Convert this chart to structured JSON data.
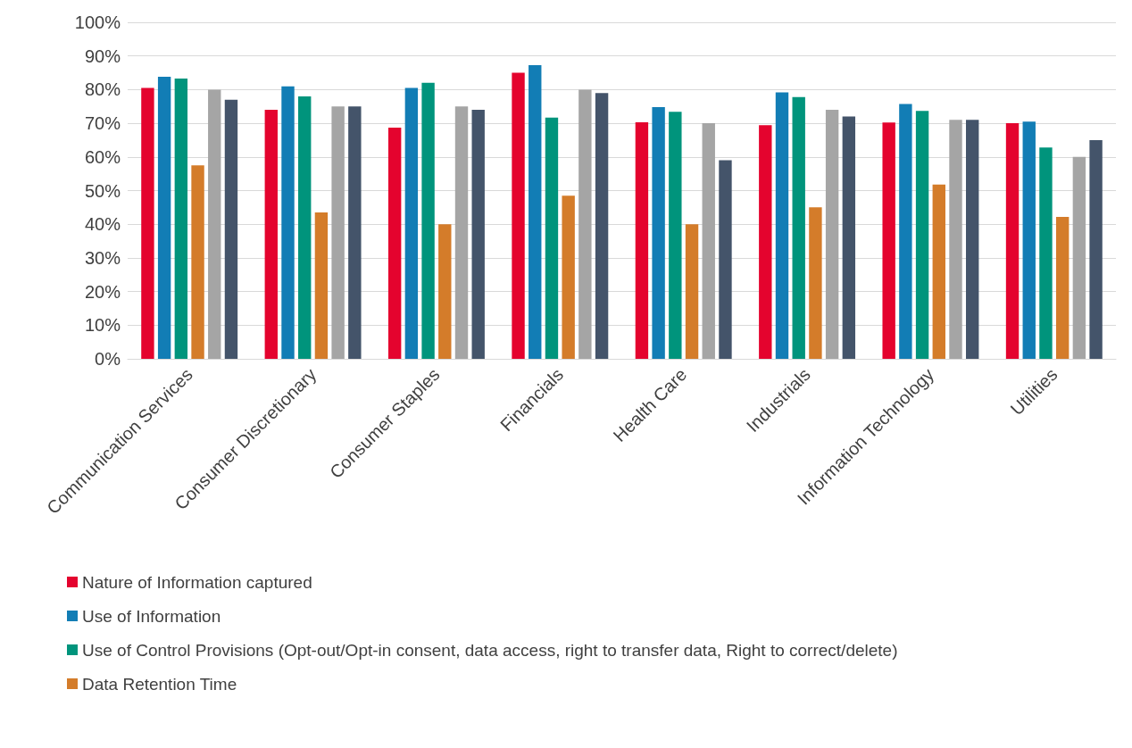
{
  "chart_data": {
    "type": "bar",
    "categories": [
      "Communication Services",
      "Consumer Discretionary",
      "Consumer Staples",
      "Financials",
      "Health Care",
      "Industrials",
      "Information Technology",
      "Utilities"
    ],
    "series": [
      {
        "name": "Nature of Information captured",
        "color": "#e4032e",
        "values": [
          80.5,
          74,
          68.7,
          85,
          70.3,
          69.4,
          70.2,
          70
        ]
      },
      {
        "name": "Use of Information",
        "color": "#127db5",
        "values": [
          83.8,
          81,
          80.5,
          87.3,
          74.8,
          79.2,
          75.7,
          70.5
        ]
      },
      {
        "name": "Use of Control Provisions (Opt-out/Opt-in consent, data access, right to transfer data, Right to correct/delete)",
        "color": "#00947c",
        "values": [
          83.3,
          78,
          82,
          71.7,
          73.4,
          77.8,
          73.7,
          62.8
        ]
      },
      {
        "name": "Data Retention Time",
        "color": "#d47c2a",
        "values": [
          57.5,
          43.5,
          40,
          48.5,
          40,
          45,
          51.8,
          42.2
        ]
      },
      {
        "color": "#a5a5a5",
        "values": [
          80,
          75,
          75,
          80,
          70,
          74,
          71,
          60
        ]
      },
      {
        "color": "#44546a",
        "values": [
          77,
          75,
          74,
          79,
          59,
          72,
          71,
          65
        ]
      }
    ],
    "ylim": [
      0,
      100
    ],
    "yticks": [
      {
        "value": 0,
        "label": "0%"
      },
      {
        "value": 10,
        "label": "10%"
      },
      {
        "value": 20,
        "label": "20%"
      },
      {
        "value": 30,
        "label": "30%"
      },
      {
        "value": 40,
        "label": "40%"
      },
      {
        "value": 50,
        "label": "50%"
      },
      {
        "value": 60,
        "label": "60%"
      },
      {
        "value": 70,
        "label": "70%"
      },
      {
        "value": 80,
        "label": "80%"
      },
      {
        "value": 90,
        "label": "90%"
      },
      {
        "value": 100,
        "label": "100%"
      }
    ],
    "grid": "y",
    "legend": "bottom left"
  }
}
